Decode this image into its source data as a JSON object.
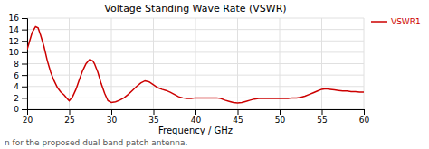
{
  "chart_data": {
    "type": "line",
    "title": "Voltage Standing Wave Rate (VSWR)",
    "x_label": "Frequency / GHz",
    "caption": "n for the proposed dual band patch antenna.",
    "x": [
      20,
      20.3,
      20.6,
      21.0,
      21.3,
      21.6,
      22.0,
      22.4,
      22.8,
      23.2,
      23.6,
      24.0,
      24.4,
      24.8,
      25.0,
      25.4,
      25.8,
      26.2,
      26.6,
      27.0,
      27.4,
      27.8,
      28.0,
      28.4,
      28.8,
      29.2,
      29.6,
      30.0,
      30.5,
      31.0,
      31.5,
      32.0,
      32.5,
      33.0,
      33.5,
      34.0,
      34.5,
      35.0,
      35.5,
      36.0,
      36.5,
      37.0,
      37.5,
      38.0,
      38.5,
      39.0,
      39.5,
      40.0,
      40.5,
      41.0,
      41.5,
      42.0,
      42.5,
      43.0,
      43.5,
      44.0,
      44.5,
      45.0,
      45.5,
      46.0,
      46.5,
      47.0,
      47.5,
      48.0,
      48.5,
      49.0,
      49.5,
      50.0,
      50.5,
      51.0,
      51.5,
      52.0,
      52.5,
      53.0,
      53.5,
      54.0,
      54.5,
      55.0,
      55.5,
      56.0,
      56.5,
      57.0,
      57.5,
      58.0,
      58.5,
      59.0,
      59.5,
      60.0
    ],
    "series": [
      {
        "name": "VSWR1",
        "color": "#cc0000",
        "values": [
          10.5,
          12.0,
          13.5,
          14.5,
          14.3,
          13.0,
          11.0,
          8.5,
          6.5,
          5.0,
          3.8,
          3.0,
          2.5,
          1.8,
          1.5,
          2.2,
          3.5,
          5.2,
          6.8,
          8.0,
          8.7,
          8.5,
          8.0,
          6.5,
          4.5,
          2.8,
          1.5,
          1.2,
          1.3,
          1.6,
          2.0,
          2.6,
          3.3,
          4.0,
          4.6,
          5.0,
          4.8,
          4.3,
          3.8,
          3.5,
          3.3,
          3.0,
          2.6,
          2.2,
          2.0,
          1.9,
          1.9,
          2.0,
          2.0,
          2.0,
          2.0,
          2.0,
          2.0,
          1.9,
          1.6,
          1.4,
          1.2,
          1.1,
          1.2,
          1.4,
          1.6,
          1.8,
          1.9,
          1.9,
          1.9,
          1.9,
          1.9,
          1.9,
          1.9,
          1.9,
          2.0,
          2.0,
          2.1,
          2.3,
          2.6,
          2.9,
          3.2,
          3.5,
          3.6,
          3.5,
          3.4,
          3.3,
          3.2,
          3.2,
          3.1,
          3.1,
          3.0,
          3.0
        ]
      }
    ],
    "xlim": [
      20,
      60
    ],
    "ylim": [
      0,
      16
    ],
    "xticks": [
      20,
      25,
      30,
      35,
      40,
      45,
      50,
      55,
      60
    ],
    "yticks": [
      0,
      2,
      4,
      6,
      8,
      10,
      12,
      14,
      16
    ],
    "grid": true,
    "legend": "right"
  }
}
